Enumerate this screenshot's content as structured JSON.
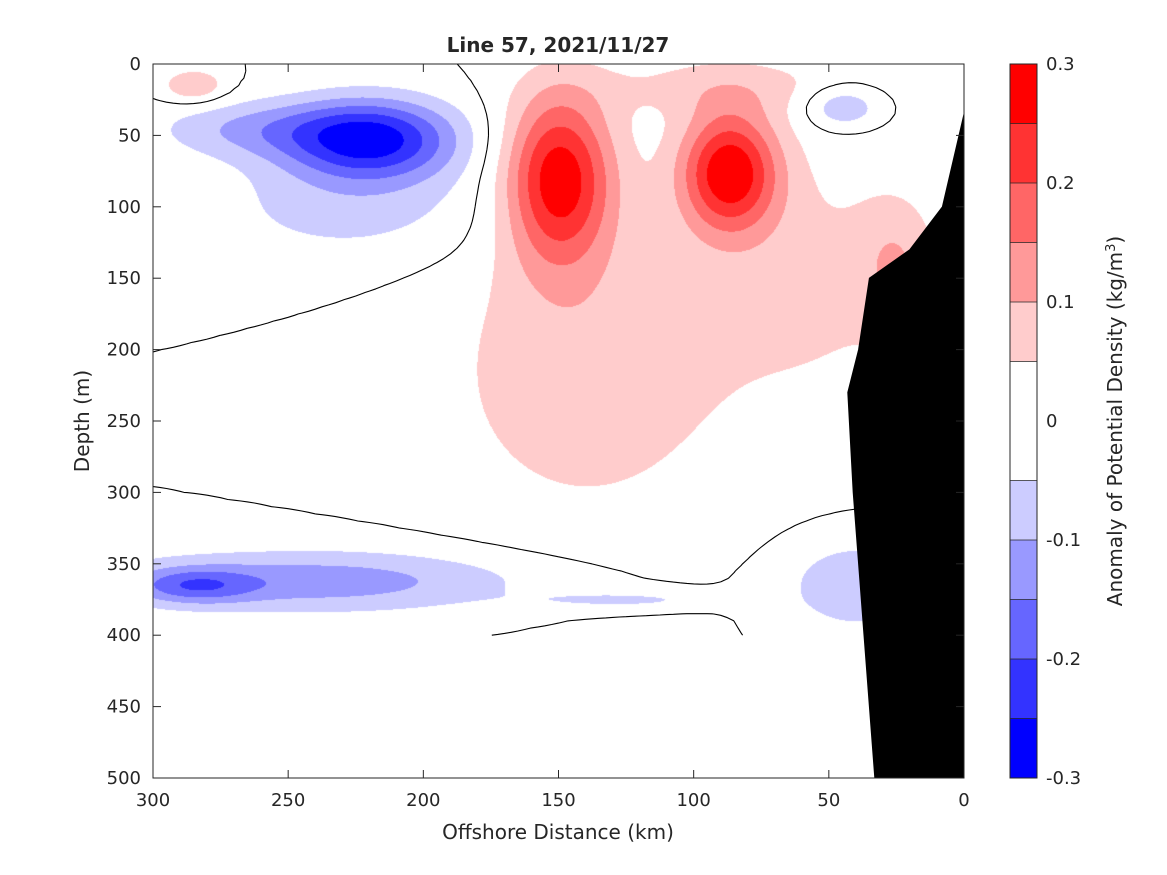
{
  "chart_data": {
    "type": "heatmap",
    "subtype": "filled-contour",
    "title": "Line 57, 2021/11/27",
    "xlabel": "Offshore Distance (km)",
    "ylabel": "Depth (m)",
    "xlim": [
      300,
      0
    ],
    "ylim": [
      500,
      0
    ],
    "x_reversed": true,
    "y_reversed": true,
    "x_ticks": [
      "300",
      "250",
      "200",
      "150",
      "100",
      "50",
      "0"
    ],
    "y_ticks": [
      "0",
      "50",
      "100",
      "150",
      "200",
      "250",
      "300",
      "350",
      "400",
      "450",
      "500"
    ],
    "grid": false,
    "colorbar": {
      "label_prefix": "Anomaly of Potential Density (kg/m",
      "label_superscript": "3",
      "label_suffix": ")",
      "clim": [
        -0.3,
        0.3
      ],
      "tick_labels": [
        "0.3",
        "0.2",
        "0.1",
        "0",
        "-0.1",
        "-0.2",
        "-0.3"
      ],
      "tick_values": [
        0.3,
        0.2,
        0.1,
        0,
        -0.1,
        -0.2,
        -0.3
      ],
      "levels": [
        -0.3,
        -0.25,
        -0.2,
        -0.15,
        -0.1,
        -0.05,
        0.05,
        0.1,
        0.15,
        0.2,
        0.25,
        0.3
      ],
      "colors": [
        "#0000ff",
        "#3333ff",
        "#6666ff",
        "#9999ff",
        "#ccccff",
        "#ffffff",
        "#ffcccc",
        "#ff9999",
        "#ff6666",
        "#ff3333",
        "#ff0000"
      ]
    },
    "data_depth_limit": 400,
    "features": [
      {
        "kind": "negative-core",
        "x_center": 218,
        "y_center": 55,
        "min_value": -0.25
      },
      {
        "kind": "positive-core",
        "x_center": 150,
        "y_center": 75,
        "max_value": 0.3
      },
      {
        "kind": "positive-core",
        "x_center": 87,
        "y_center": 75,
        "max_value": 0.3
      },
      {
        "kind": "negative-layer",
        "x_range": [
          300,
          180
        ],
        "y_center": 365,
        "min_value": -0.2
      }
    ],
    "bathymetry": [
      [
        33,
        500
      ],
      [
        37,
        400
      ],
      [
        41,
        300
      ],
      [
        43,
        230
      ],
      [
        39,
        200
      ],
      [
        35,
        150
      ],
      [
        20,
        130
      ],
      [
        8,
        100
      ],
      [
        0,
        35
      ],
      [
        0,
        500
      ]
    ],
    "colors": {
      "bathymetry": "#000000",
      "contour_line": "#000000"
    }
  }
}
